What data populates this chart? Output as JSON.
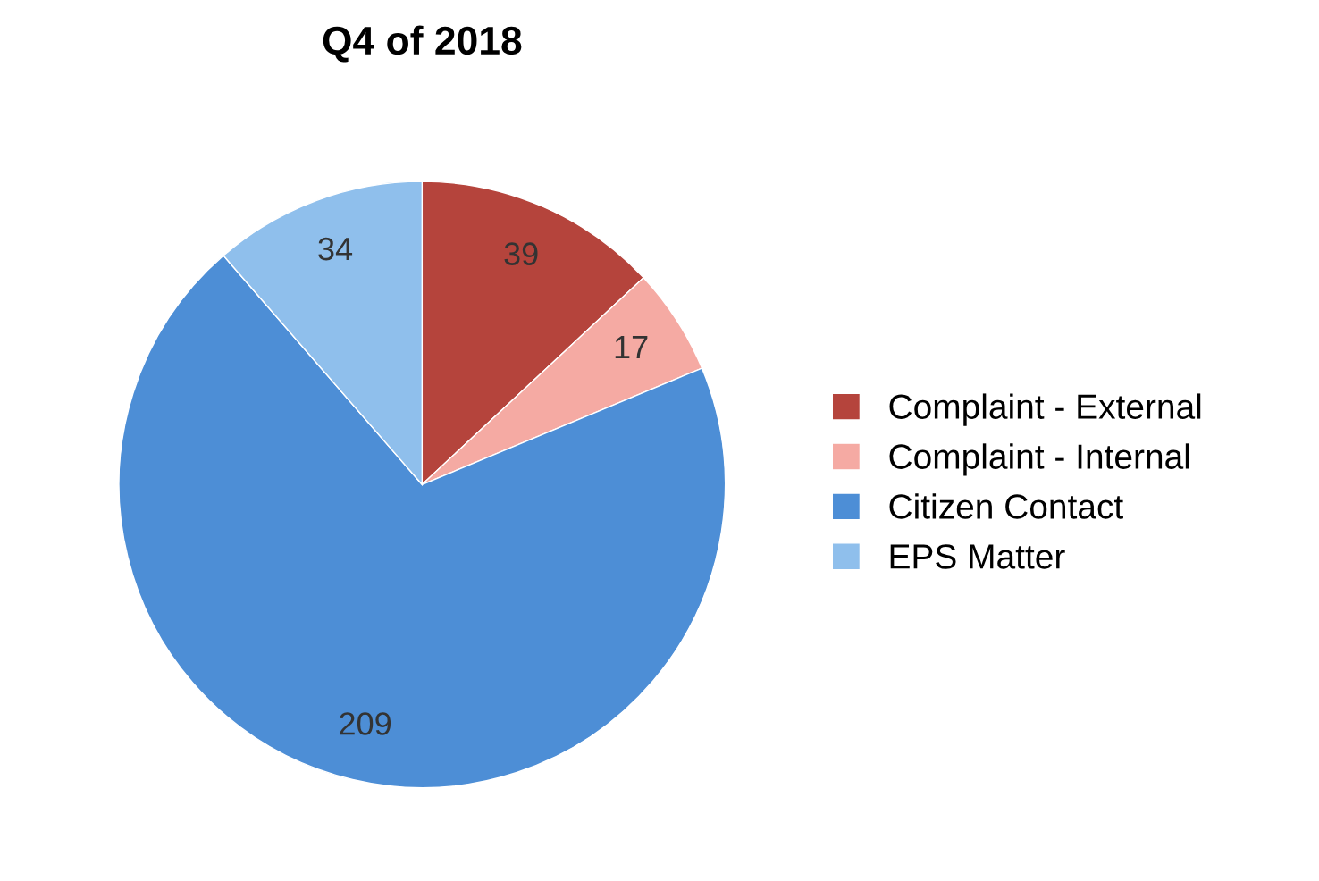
{
  "chart_data": {
    "type": "pie",
    "title": "Q4 of 2018",
    "categories": [
      "Complaint - External",
      "Complaint - Internal",
      "Citizen Contact",
      "EPS Matter"
    ],
    "values": [
      39,
      17,
      209,
      34
    ],
    "colors": [
      "#b5443c",
      "#f5aaa3",
      "#4d8ed6",
      "#8fbfec"
    ],
    "data_labels": true,
    "legend": "right"
  }
}
